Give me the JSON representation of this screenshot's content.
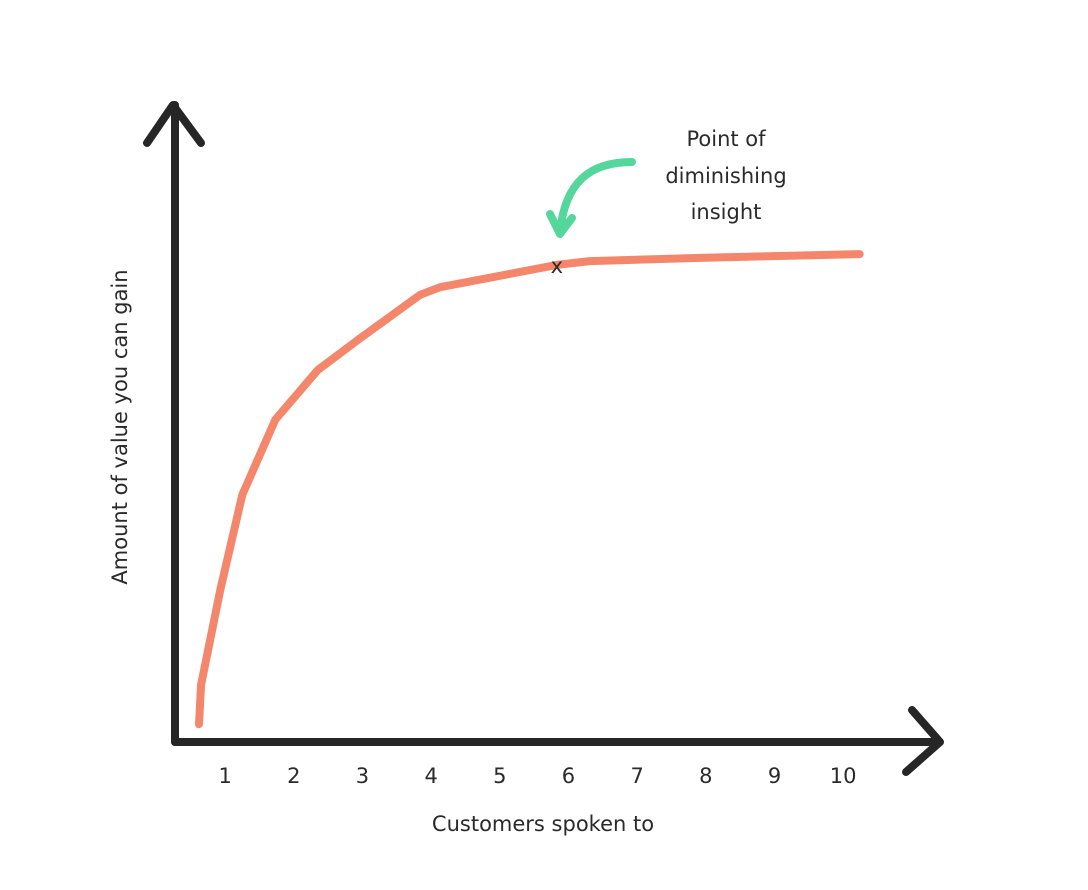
{
  "chart_data": {
    "type": "line",
    "x_label": "Customers spoken to",
    "y_label": "Amount of value you can gain",
    "xlim": [
      0.27,
      11.41
    ],
    "ylim": [
      0,
      10
    ],
    "xticks": [
      1,
      2,
      3,
      4,
      5,
      6,
      7,
      8,
      9,
      10
    ],
    "series": [
      {
        "color": "#f4876b",
        "x": [
          0.62,
          0.65,
          0.93,
          1.25,
          1.73,
          2.35,
          2.97,
          3.84,
          4.13,
          5.83,
          6.31,
          7.91,
          10.24
        ],
        "values": [
          0.28,
          0.9,
          2.39,
          3.88,
          5.06,
          5.84,
          6.34,
          7.02,
          7.14,
          7.49,
          7.55,
          7.6,
          7.66
        ]
      }
    ],
    "marker": {
      "label": "x",
      "x": 5.83,
      "y": 7.46
    },
    "annotation": [
      "Point of",
      "diminishing",
      "insight"
    ]
  }
}
